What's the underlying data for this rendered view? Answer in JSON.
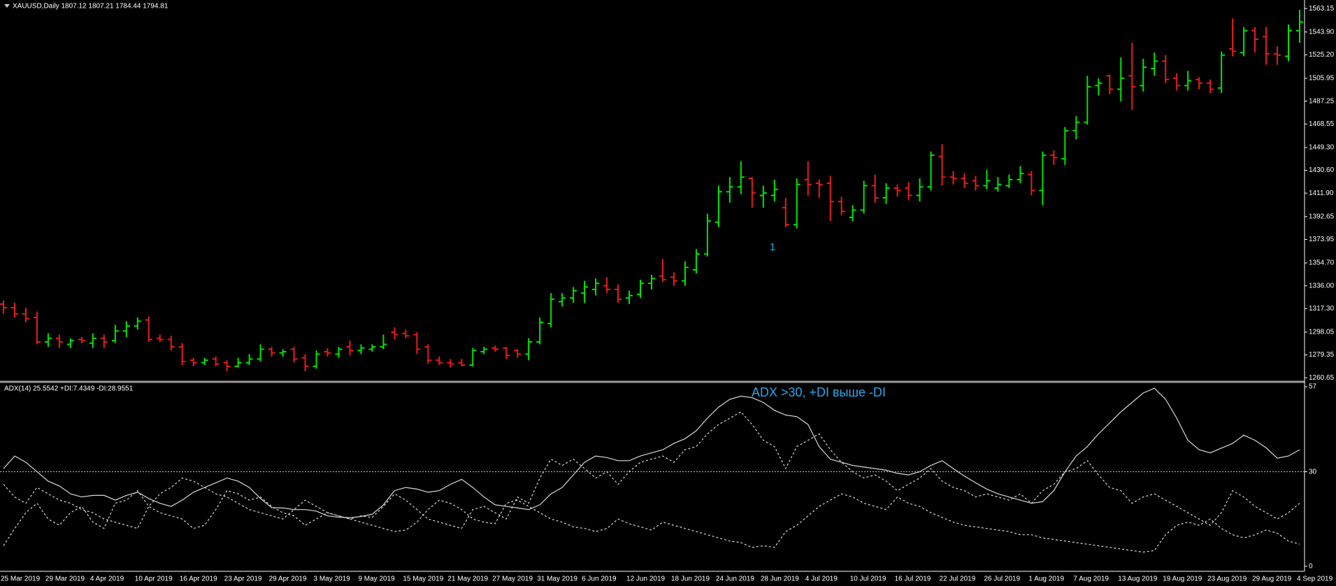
{
  "chart_data": [
    {
      "type": "ohlc",
      "title": "XAUUSD,Daily  1807.12 1807.21 1784.44 1794.81",
      "annotation": "1",
      "up_color": "#00e600",
      "down_color": "#e81c1c",
      "ylim": [
        1257.9,
        1570.1
      ],
      "yticks": [
        1563.15,
        {
          "value": 1543.9,
          "label": "1543.90"
        },
        {
          "value": 1525.2,
          "label": "1525.20"
        },
        1505.95,
        1487.25,
        1468.55,
        {
          "value": 1449.3,
          "label": "1449.30"
        },
        {
          "value": 1430.6,
          "label": "1430.60"
        },
        {
          "value": 1411.9,
          "label": "1411.90"
        },
        1392.65,
        1373.95,
        {
          "value": 1354.7,
          "label": "1354.70"
        },
        {
          "value": 1336,
          "label": "1336.00"
        },
        {
          "value": 1317.3,
          "label": "1317.30"
        },
        1298.05,
        1279.35,
        1260.65
      ],
      "open": [
        1321,
        1318,
        1313,
        1310,
        1290,
        1293,
        1288,
        1292,
        1289,
        1293,
        1291,
        1299,
        1303,
        1308,
        1293,
        1292,
        1286,
        1275,
        1273,
        1276,
        1273,
        1270,
        1273,
        1276,
        1284,
        1281,
        1284,
        1277,
        1270,
        1282,
        1280,
        1286,
        1283,
        1284,
        1286,
        1298,
        1297,
        1296,
        1286,
        1275,
        1273,
        1273,
        1271,
        1282,
        1285,
        1285,
        1283,
        1280,
        1290,
        1305,
        1323,
        1326,
        1330,
        1333,
        1336,
        1333,
        1326,
        1329,
        1338,
        1344,
        1343,
        1340,
        1349,
        1362,
        1388,
        1413,
        1417,
        1424,
        1410,
        1410,
        1400,
        1386,
        1423,
        1420,
        1420,
        1405,
        1392,
        1398,
        1418,
        1408,
        1416,
        1416,
        1410,
        1417,
        1442,
        1425,
        1424,
        1422,
        1418,
        1416,
        1418,
        1423,
        1427,
        1414,
        1443,
        1440,
        1463,
        1470,
        1500,
        1508,
        1497,
        1508,
        1500,
        1514,
        1520,
        1506,
        1500,
        1505,
        1502,
        1498,
        1530,
        1527,
        1545,
        1540,
        1526,
        1524,
        1545
      ],
      "high": [
        1324,
        1322,
        1318,
        1315,
        1297,
        1296,
        1293,
        1294,
        1297,
        1296,
        1304,
        1307,
        1310,
        1311,
        1296,
        1295,
        1289,
        1277,
        1277,
        1278,
        1275,
        1277,
        1280,
        1288,
        1286,
        1284,
        1286,
        1280,
        1283,
        1285,
        1286,
        1291,
        1288,
        1288,
        1296,
        1302,
        1300,
        1298,
        1288,
        1278,
        1276,
        1276,
        1285,
        1286,
        1287,
        1286,
        1284,
        1293,
        1310,
        1330,
        1330,
        1335,
        1340,
        1342,
        1343,
        1337,
        1332,
        1341,
        1345,
        1358,
        1347,
        1356,
        1366,
        1395,
        1418,
        1425,
        1438,
        1425,
        1418,
        1423,
        1408,
        1424,
        1438,
        1423,
        1426,
        1409,
        1402,
        1422,
        1427,
        1420,
        1419,
        1421,
        1424,
        1446,
        1452,
        1430,
        1428,
        1426,
        1431,
        1425,
        1427,
        1434,
        1430,
        1446,
        1447,
        1466,
        1475,
        1508,
        1506,
        1509,
        1523,
        1535,
        1522,
        1527,
        1525,
        1510,
        1512,
        1507,
        1505,
        1528,
        1555,
        1548,
        1548,
        1548,
        1532,
        1550,
        1562
      ],
      "low": [
        1313,
        1310,
        1306,
        1288,
        1286,
        1285,
        1285,
        1289,
        1285,
        1285,
        1289,
        1294,
        1300,
        1290,
        1290,
        1283,
        1271,
        1270,
        1271,
        1270,
        1266,
        1269,
        1271,
        1274,
        1278,
        1278,
        1273,
        1266,
        1268,
        1278,
        1277,
        1279,
        1280,
        1282,
        1284,
        1292,
        1293,
        1280,
        1272,
        1271,
        1269,
        1270,
        1270,
        1280,
        1282,
        1276,
        1277,
        1275,
        1288,
        1302,
        1319,
        1322,
        1322,
        1328,
        1330,
        1322,
        1321,
        1326,
        1333,
        1339,
        1336,
        1336,
        1346,
        1360,
        1384,
        1404,
        1411,
        1400,
        1400,
        1405,
        1384,
        1383,
        1410,
        1408,
        1389,
        1394,
        1389,
        1395,
        1404,
        1403,
        1409,
        1406,
        1405,
        1414,
        1418,
        1419,
        1416,
        1414,
        1415,
        1413,
        1416,
        1420,
        1410,
        1402,
        1435,
        1435,
        1456,
        1468,
        1492,
        1493,
        1487,
        1480,
        1495,
        1508,
        1502,
        1496,
        1496,
        1497,
        1494,
        1494,
        1524,
        1524,
        1527,
        1517,
        1517,
        1520,
        1535
      ],
      "close": [
        1318,
        1313,
        1309,
        1290,
        1293,
        1290,
        1291,
        1291,
        1293,
        1290,
        1299,
        1303,
        1307,
        1292,
        1292,
        1286,
        1274,
        1273,
        1275,
        1272,
        1270,
        1273,
        1276,
        1284,
        1281,
        1282,
        1276,
        1270,
        1280,
        1281,
        1284,
        1283,
        1285,
        1286,
        1288,
        1296,
        1295,
        1284,
        1275,
        1273,
        1272,
        1271,
        1283,
        1284,
        1284,
        1279,
        1280,
        1290,
        1306,
        1325,
        1326,
        1332,
        1335,
        1338,
        1333,
        1325,
        1328,
        1338,
        1342,
        1341,
        1340,
        1351,
        1362,
        1389,
        1413,
        1417,
        1425,
        1412,
        1412,
        1415,
        1386,
        1419,
        1419,
        1419,
        1405,
        1397,
        1398,
        1418,
        1408,
        1416,
        1414,
        1410,
        1417,
        1443,
        1425,
        1424,
        1420,
        1418,
        1422,
        1419,
        1423,
        1428,
        1414,
        1443,
        1441,
        1463,
        1470,
        1499,
        1502,
        1497,
        1506,
        1499,
        1515,
        1520,
        1505,
        1500,
        1504,
        1502,
        1497,
        1525,
        1528,
        1545,
        1538,
        1526,
        1525,
        1545,
        1552
      ]
    },
    {
      "type": "line",
      "title": "ADX(14) 25.5542 +DI:7.4349 -DI:28.9551",
      "annotation": "ADX >30, +DI выше -DI",
      "ylim": [
        -1.6,
        58.1
      ],
      "yticks": [
        0,
        30,
        57
      ],
      "levels": [
        30
      ],
      "categories": [
        "25 Mar 2019",
        null,
        null,
        null,
        "29 Mar 2019",
        null,
        null,
        null,
        "4 Apr 2019",
        null,
        null,
        null,
        "10 Apr 2019",
        null,
        null,
        null,
        "16 Apr 2019",
        null,
        null,
        null,
        "23 Apr 2019",
        null,
        null,
        null,
        "29 Apr 2019",
        null,
        null,
        null,
        "3 May 2019",
        null,
        null,
        null,
        "9 May 2019",
        null,
        null,
        null,
        "15 May 2019",
        null,
        null,
        null,
        "21 May 2019",
        null,
        null,
        null,
        "27 May 2019",
        null,
        null,
        null,
        "31 May 2019",
        null,
        null,
        null,
        "6 Jun 2019",
        null,
        null,
        null,
        "12 Jun 2019",
        null,
        null,
        null,
        "18 Jun 2019",
        null,
        null,
        null,
        "24 Jun 2019",
        null,
        null,
        null,
        "28 Jun 2019",
        null,
        null,
        null,
        "4 Jul 2019",
        null,
        null,
        null,
        "10 Jul 2019",
        null,
        null,
        null,
        "16 Jul 2019",
        null,
        null,
        null,
        "22 Jul 2019",
        null,
        null,
        null,
        "26 Jul 2019",
        null,
        null,
        null,
        "1 Aug 2019",
        null,
        null,
        null,
        "7 Aug 2019",
        null,
        null,
        null,
        "13 Aug 2019",
        null,
        null,
        null,
        "19 Aug 2019",
        null,
        null,
        null,
        "23 Aug 2019",
        null,
        null,
        null,
        "29 Aug 2019",
        null,
        null,
        null,
        "4 Sep 2019"
      ],
      "series": [
        {
          "color": "#d8d8d8",
          "style": "solid",
          "values": [
            31,
            35,
            33,
            30,
            27,
            25.5,
            23,
            22,
            22.5,
            22.5,
            21,
            22.5,
            23.5,
            21.5,
            20,
            19,
            21,
            23.5,
            25,
            26.5,
            28,
            27,
            25,
            21.5,
            18.6,
            18.5,
            18,
            18,
            17.5,
            16,
            15.6,
            15.4,
            15.8,
            16.5,
            19.5,
            24,
            25,
            24.5,
            23.5,
            24,
            26,
            27.6,
            25,
            22,
            19.5,
            19,
            18.5,
            18,
            19.5,
            23,
            25,
            29,
            33,
            35,
            34.5,
            33.5,
            33.5,
            35,
            36,
            37,
            39,
            40.5,
            43,
            47,
            50.5,
            53,
            54,
            53.5,
            52,
            49.5,
            48,
            47.5,
            45,
            38,
            34,
            33,
            32,
            31.5,
            31,
            30.5,
            29.5,
            29,
            30,
            32,
            33.5,
            31,
            28.6,
            26.5,
            24.5,
            23,
            22,
            21,
            20,
            20.5,
            24,
            30,
            35,
            38,
            42,
            45.5,
            49,
            52,
            55,
            56.5,
            53,
            47,
            40,
            37,
            36,
            37.5,
            39,
            41.6,
            40,
            37.6,
            34.3,
            35,
            37
          ]
        },
        {
          "color": "#d8d8d8",
          "style": "dashed",
          "values": [
            6.5,
            12,
            17,
            20,
            15,
            13,
            17,
            19,
            14,
            12,
            20,
            21,
            24,
            19,
            17,
            16,
            15,
            12,
            13,
            18,
            24,
            23,
            21,
            22,
            19,
            17,
            16,
            13,
            15,
            17,
            16,
            15,
            16,
            15.5,
            19,
            23,
            21,
            18,
            15,
            14,
            13,
            12,
            18,
            19,
            17,
            15,
            22,
            20,
            28,
            34,
            32,
            34,
            31,
            28,
            30,
            26,
            30,
            33,
            34,
            35,
            33,
            37,
            38,
            42,
            45,
            47,
            49,
            45,
            40,
            38,
            31,
            38,
            40,
            42,
            37,
            33,
            30,
            28,
            29,
            27,
            24,
            26,
            28,
            31,
            27,
            25,
            24,
            22,
            23,
            22,
            21,
            23,
            20,
            24,
            26,
            30,
            31,
            33.5,
            29,
            25,
            24,
            20,
            22,
            23,
            21,
            19,
            17,
            15,
            13,
            17,
            24,
            22,
            19,
            17,
            15,
            17,
            20
          ]
        },
        {
          "color": "#d8d8d8",
          "style": "dashed",
          "values": [
            26,
            22,
            20,
            25,
            23,
            21,
            20,
            18,
            17,
            15,
            14,
            13,
            12,
            19,
            23,
            25,
            28,
            27,
            25,
            23,
            22,
            20,
            18,
            17,
            16,
            15,
            18,
            21,
            19,
            17,
            16,
            15,
            14,
            13,
            12,
            11,
            11.5,
            14,
            18,
            21,
            20,
            18,
            15,
            14,
            13.5,
            20,
            21,
            19,
            17,
            15,
            14,
            12.5,
            12,
            11,
            12,
            15,
            13.5,
            12.5,
            11.5,
            14,
            13,
            12,
            11,
            10,
            9,
            8,
            7.5,
            6,
            6.5,
            6,
            11,
            13,
            16,
            19,
            21,
            23,
            22,
            20,
            19,
            18,
            22,
            20,
            19,
            17,
            15.5,
            14,
            13,
            12.5,
            12,
            11.5,
            11,
            10,
            10,
            9,
            8.5,
            8,
            7.5,
            7,
            6.5,
            6,
            5.5,
            5,
            4.5,
            5,
            10,
            13,
            14,
            13,
            15,
            12,
            10,
            9,
            10,
            11.5,
            10.5,
            8,
            7
          ]
        }
      ]
    }
  ]
}
